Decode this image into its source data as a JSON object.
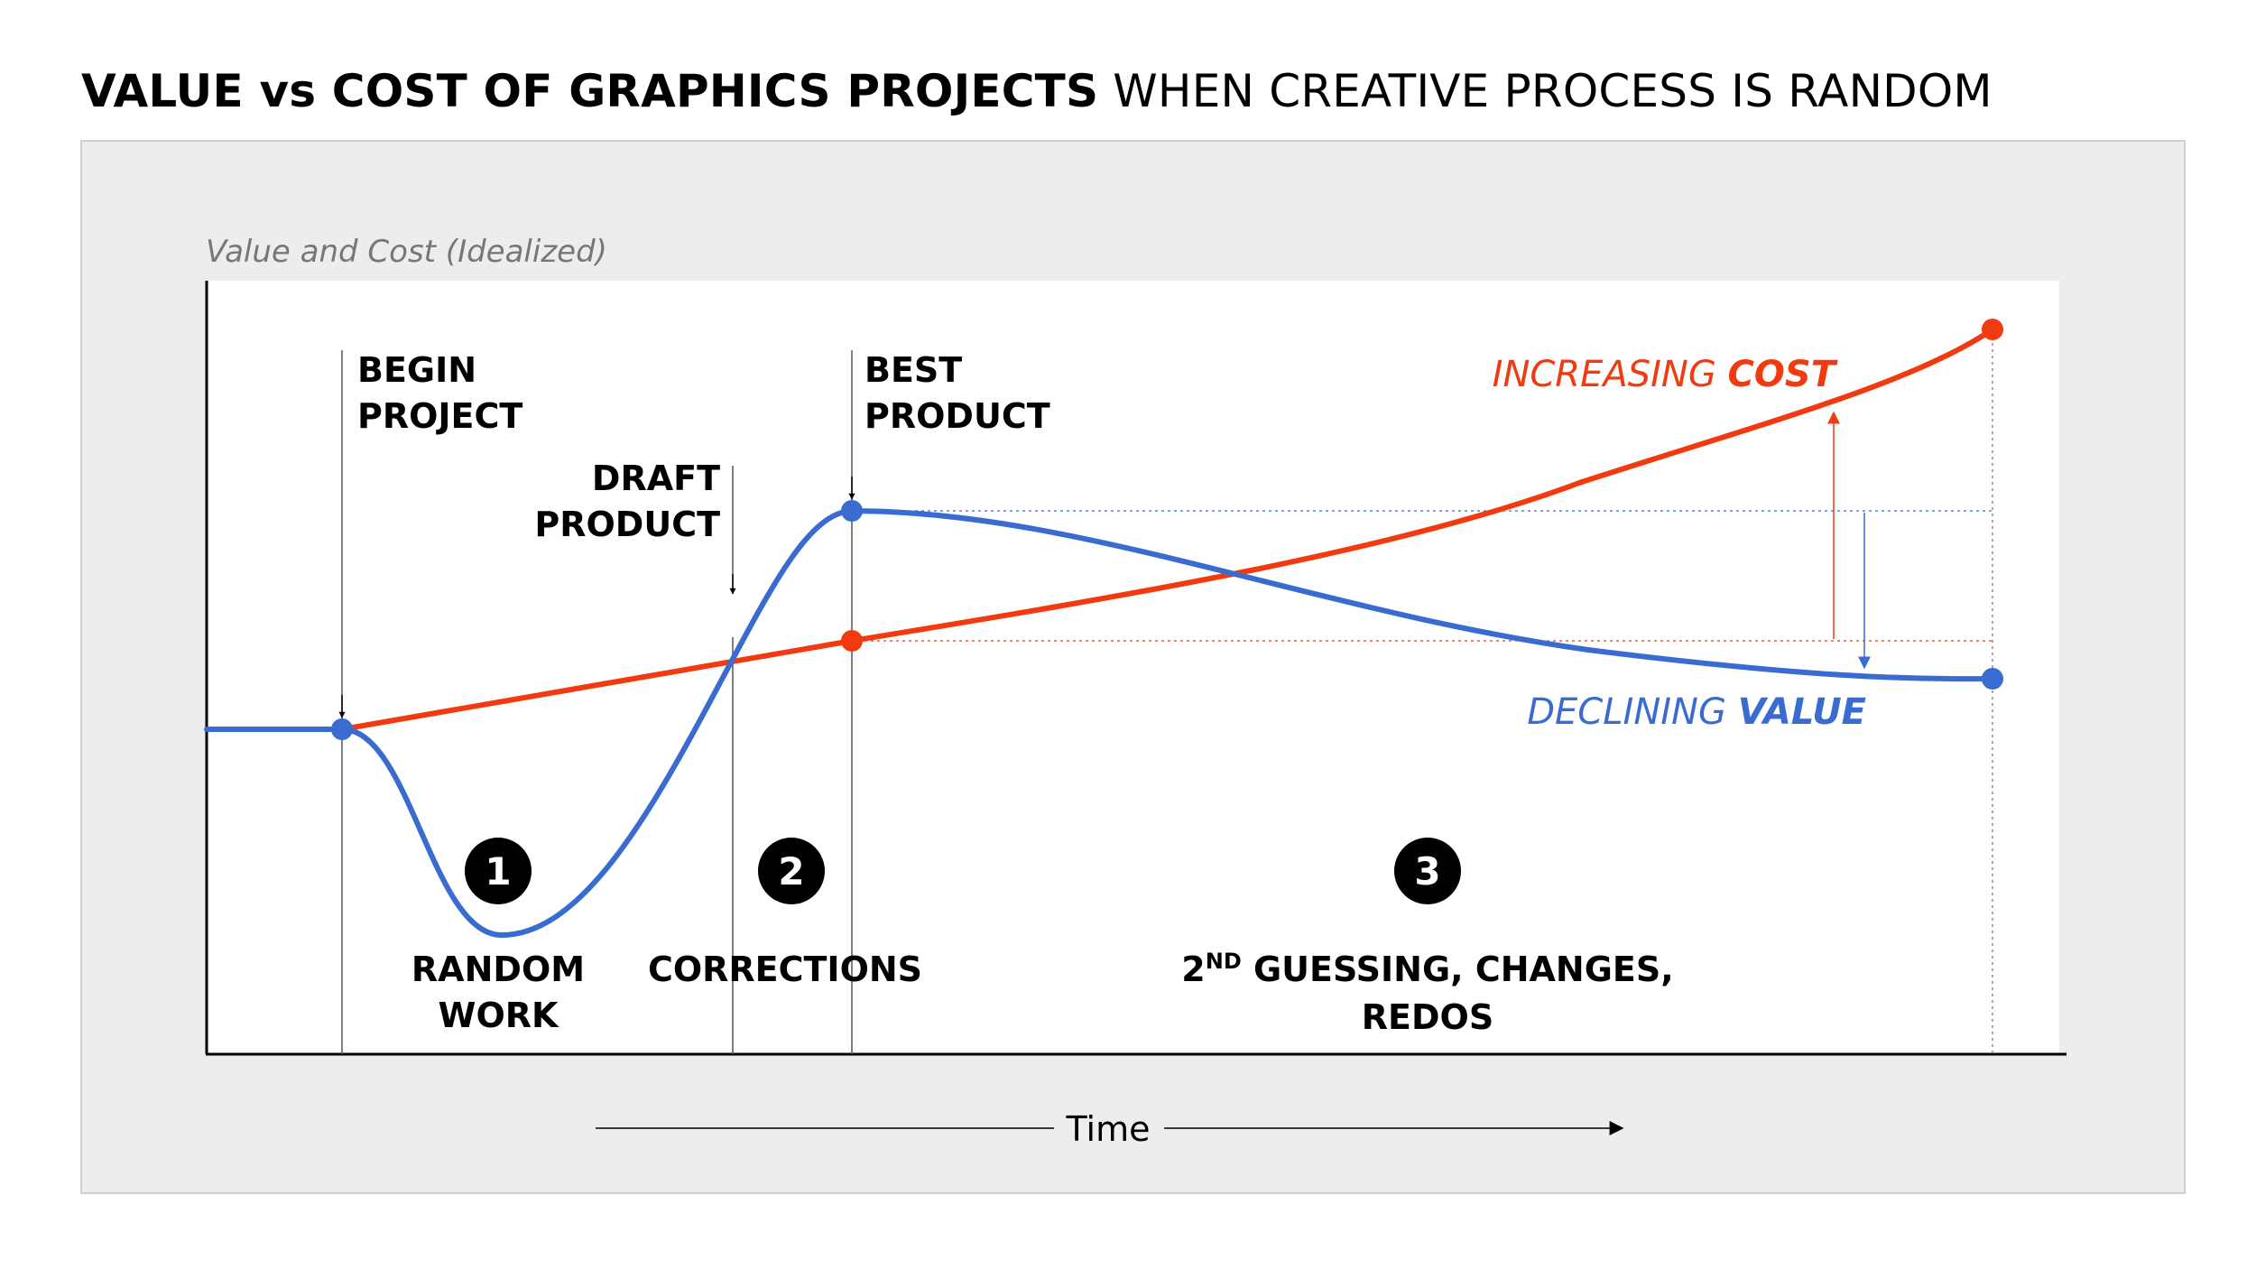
{
  "title": {
    "bold": "VALUE vs COST OF GRAPHICS PROJECTS",
    "normal": "WHEN CREATIVE PROCESS IS RANDOM"
  },
  "diagram": {
    "y_axis_label": "Value and Cost (Idealized)",
    "x_axis_label": "Time",
    "milestones": {
      "begin": [
        "BEGIN",
        "PROJECT"
      ],
      "draft": [
        "DRAFT",
        "PRODUCT"
      ],
      "best": [
        "BEST",
        "PRODUCT"
      ]
    },
    "series_labels": {
      "cost_prefix": "INCREASING",
      "cost_emph": "COST",
      "value_prefix": "DECLINING",
      "value_emph": "VALUE"
    },
    "phases": [
      {
        "number": "1",
        "lines": [
          "RANDOM",
          "WORK"
        ]
      },
      {
        "number": "2",
        "lines": [
          "CORRECTIONS"
        ]
      },
      {
        "number": "3",
        "sup_base": "2",
        "sup": "ND",
        "line1_rest": " GUESSING, CHANGES,",
        "line2": "REDOS"
      }
    ],
    "colors": {
      "cost": "#f23a11",
      "value": "#3a6bd0",
      "axis": "#000000",
      "panel": "#ededed",
      "plot": "#ffffff"
    }
  }
}
